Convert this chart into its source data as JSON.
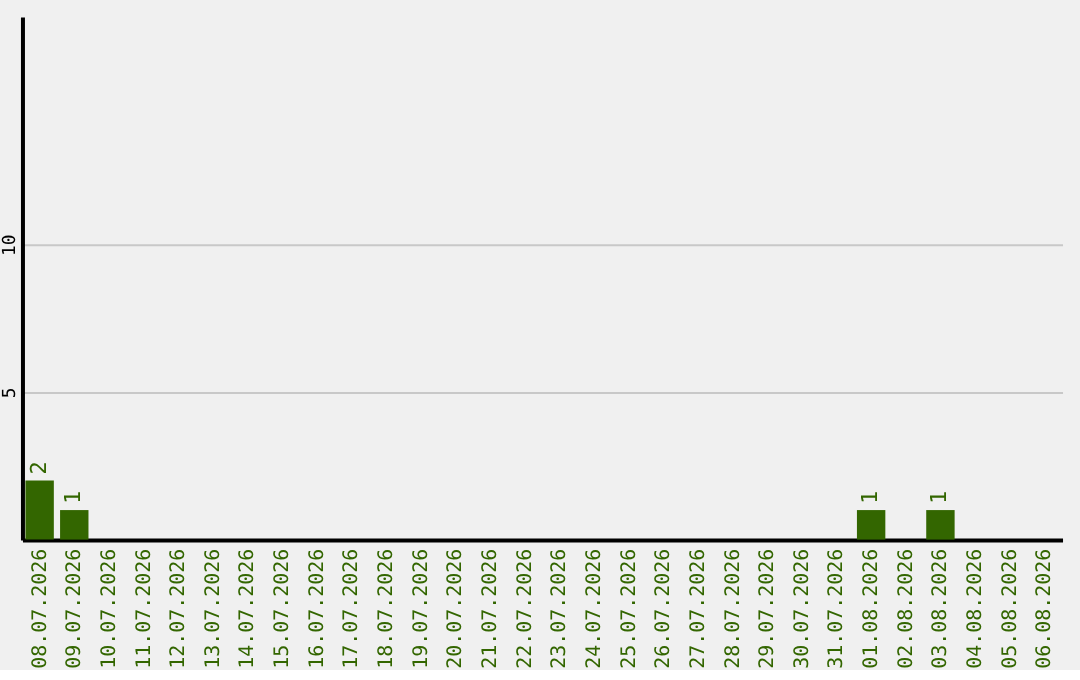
{
  "chart_data": {
    "type": "bar",
    "categories": [
      "08.07.2026",
      "09.07.2026",
      "10.07.2026",
      "11.07.2026",
      "12.07.2026",
      "13.07.2026",
      "14.07.2026",
      "15.07.2026",
      "16.07.2026",
      "17.07.2026",
      "18.07.2026",
      "19.07.2026",
      "20.07.2026",
      "21.07.2026",
      "22.07.2026",
      "23.07.2026",
      "24.07.2026",
      "25.07.2026",
      "26.07.2026",
      "27.07.2026",
      "28.07.2026",
      "29.07.2026",
      "30.07.2026",
      "31.07.2026",
      "01.08.2026",
      "02.08.2026",
      "03.08.2026",
      "04.08.2026",
      "05.08.2026",
      "06.08.2026"
    ],
    "values": [
      2,
      1,
      0,
      0,
      0,
      0,
      0,
      0,
      0,
      0,
      0,
      0,
      0,
      0,
      0,
      0,
      0,
      0,
      0,
      0,
      0,
      0,
      0,
      0,
      1,
      0,
      1,
      0,
      0,
      0
    ],
    "value_labels": [
      "2",
      "1",
      null,
      null,
      null,
      null,
      null,
      null,
      null,
      null,
      null,
      null,
      null,
      null,
      null,
      null,
      null,
      null,
      null,
      null,
      null,
      null,
      null,
      null,
      "1",
      null,
      "1",
      null,
      null,
      null
    ],
    "color": "#336600",
    "ylim": [
      0,
      17.7
    ],
    "yticks": [
      5,
      10
    ],
    "grid": "y"
  }
}
